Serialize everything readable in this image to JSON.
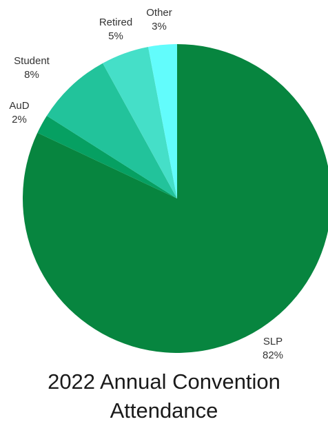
{
  "chart_data": {
    "type": "pie",
    "title_lines": [
      "2022 Annual Convention",
      "Attendance"
    ],
    "slices": [
      {
        "name": "SLP",
        "value": 82,
        "label": "82%",
        "color": "#07853f"
      },
      {
        "name": "AuD",
        "value": 2,
        "label": "2%",
        "color": "#06a062"
      },
      {
        "name": "Student",
        "value": 8,
        "label": "8%",
        "color": "#22c39b"
      },
      {
        "name": "Retired",
        "value": 5,
        "label": "5%",
        "color": "#45dfc8"
      },
      {
        "name": "Other",
        "value": 3,
        "label": "3%",
        "color": "#62fcfc"
      }
    ],
    "start": "12 o'clock",
    "direction": "clockwise",
    "legend": "none",
    "labels": "outside"
  }
}
